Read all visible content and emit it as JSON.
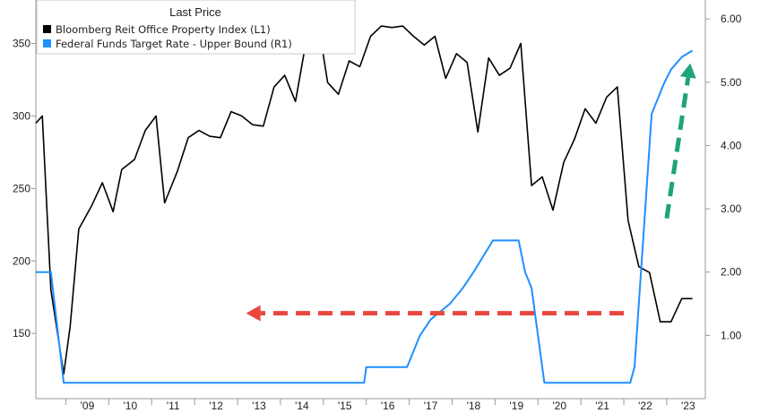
{
  "chart_data": {
    "type": "line",
    "grid": false,
    "legend": {
      "title": "Last Price",
      "placement": "top-left",
      "entries": [
        {
          "label": "Bloomberg Reit Office Property Index  (L1)",
          "color": "#000000"
        },
        {
          "label": "Federal Funds Target Rate - Upper Bound  (R1)",
          "color": "#1e90ff"
        }
      ]
    },
    "x_axis": {
      "ticks": [
        "'09",
        "'10",
        "'11",
        "'12",
        "'13",
        "'14",
        "'15",
        "'16",
        "'17",
        "'18",
        "'19",
        "'20",
        "'21",
        "'22",
        "'23"
      ],
      "range": [
        2008.3,
        2023.9
      ]
    },
    "y_left": {
      "ticks": [
        "150",
        "200",
        "250",
        "300",
        "350"
      ],
      "tick_values": [
        150,
        200,
        250,
        300,
        350
      ],
      "range": [
        105,
        380
      ]
    },
    "y_right": {
      "ticks": [
        "1.00",
        "2.00",
        "3.00",
        "4.00",
        "5.00",
        "6.00"
      ],
      "tick_values": [
        1,
        2,
        3,
        4,
        5,
        6
      ],
      "range": [
        0,
        6.3
      ]
    },
    "series": [
      {
        "name": "Bloomberg Reit Office Property Index  (L1)",
        "axis": "left",
        "color": "#000000",
        "x": [
          2008.3,
          2008.45,
          2008.65,
          2008.95,
          2009.1,
          2009.3,
          2009.6,
          2009.85,
          2010.1,
          2010.3,
          2010.6,
          2010.85,
          2011.1,
          2011.3,
          2011.6,
          2011.85,
          2012.1,
          2012.35,
          2012.6,
          2012.85,
          2013.1,
          2013.35,
          2013.6,
          2013.85,
          2014.1,
          2014.35,
          2014.6,
          2014.85,
          2015.1,
          2015.35,
          2015.6,
          2015.85,
          2016.1,
          2016.35,
          2016.6,
          2016.85,
          2017.1,
          2017.35,
          2017.6,
          2017.85,
          2018.1,
          2018.35,
          2018.6,
          2018.85,
          2019.1,
          2019.35,
          2019.6,
          2019.85,
          2020.1,
          2020.35,
          2020.6,
          2020.85,
          2021.1,
          2021.35,
          2021.6,
          2021.85,
          2022.1,
          2022.35,
          2022.6,
          2022.85,
          2023.1,
          2023.35,
          2023.6
        ],
        "y": [
          295,
          300,
          180,
          122,
          155,
          222,
          238,
          254,
          234,
          263,
          270,
          290,
          300,
          240,
          262,
          285,
          290,
          286,
          285,
          303,
          300,
          294,
          293,
          320,
          328,
          310,
          352,
          370,
          323,
          315,
          338,
          334,
          355,
          362,
          361,
          362,
          355,
          349,
          355,
          326,
          343,
          337,
          289,
          340,
          328,
          333,
          350,
          252,
          258,
          235,
          268,
          284,
          305,
          295,
          313,
          320,
          228,
          196,
          192,
          158,
          158,
          174,
          174
        ]
      },
      {
        "name": "Federal Funds Target Rate - Upper Bound  (R1)",
        "axis": "right",
        "color": "#1e90ff",
        "x": [
          2008.3,
          2008.65,
          2008.95,
          2015.95,
          2016.0,
          2016.95,
          2017.25,
          2017.5,
          2017.95,
          2018.25,
          2018.5,
          2018.95,
          2019.55,
          2019.7,
          2019.85,
          2020.15,
          2020.25,
          2021.0,
          2022.15,
          2022.25,
          2022.45,
          2022.65,
          2022.95,
          2023.1,
          2023.35,
          2023.6
        ],
        "y": [
          2.0,
          2.0,
          0.25,
          0.25,
          0.5,
          0.5,
          1.0,
          1.25,
          1.5,
          1.75,
          2.0,
          2.5,
          2.5,
          2.0,
          1.75,
          0.25,
          0.25,
          0.25,
          0.25,
          0.5,
          2.5,
          4.5,
          5.0,
          5.2,
          5.4,
          5.5
        ]
      }
    ],
    "annotations": [
      {
        "type": "dashed-arrow",
        "color": "#e8473f",
        "direction": "left",
        "from": [
          2022.0,
          1.35
        ],
        "to": [
          2013.2,
          1.35
        ]
      },
      {
        "type": "dashed-arrow",
        "color": "#1fa37d",
        "direction": "up",
        "from": [
          2023.0,
          2.85
        ],
        "to": [
          2023.55,
          5.3
        ]
      }
    ]
  }
}
